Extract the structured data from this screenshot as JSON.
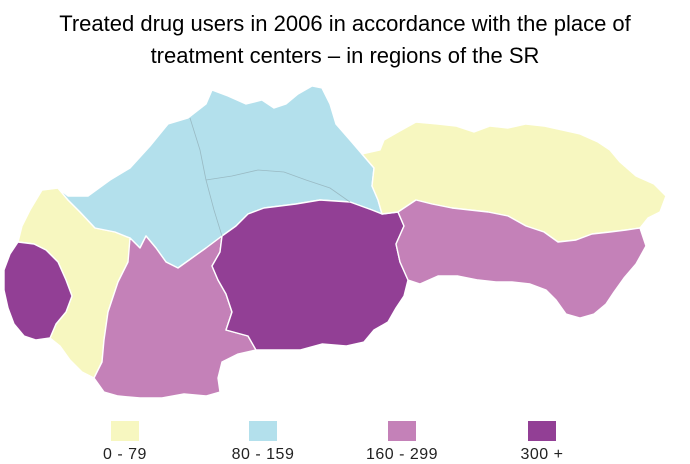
{
  "title_line1": "Treated drug users in 2006 in accordance with the place of",
  "title_line2": "treatment centers – in regions of the SR",
  "legend": [
    {
      "label": "0 - 79",
      "color": "#f7f7c0"
    },
    {
      "label": "80 - 159",
      "color": "#b3e0ec"
    },
    {
      "label": "160 - 299",
      "color": "#c481b8"
    },
    {
      "label": "300 +",
      "color": "#923f95"
    }
  ],
  "regions": [
    {
      "name": "Bratislava region",
      "category": "300 +",
      "color": "#923f95"
    },
    {
      "name": "Trnava region",
      "category": "0 - 79",
      "color": "#f7f7c0"
    },
    {
      "name": "Trenčín region",
      "category": "80 - 159",
      "color": "#b3e0ec"
    },
    {
      "name": "Nitra region",
      "category": "160 - 299",
      "color": "#c481b8"
    },
    {
      "name": "Žilina region",
      "category": "80 - 159",
      "color": "#b3e0ec"
    },
    {
      "name": "Banská Bystrica region",
      "category": "300 +",
      "color": "#923f95"
    },
    {
      "name": "Prešov region",
      "category": "0 - 79",
      "color": "#f7f7c0"
    },
    {
      "name": "Košice region",
      "category": "160 - 299",
      "color": "#c481b8"
    }
  ]
}
